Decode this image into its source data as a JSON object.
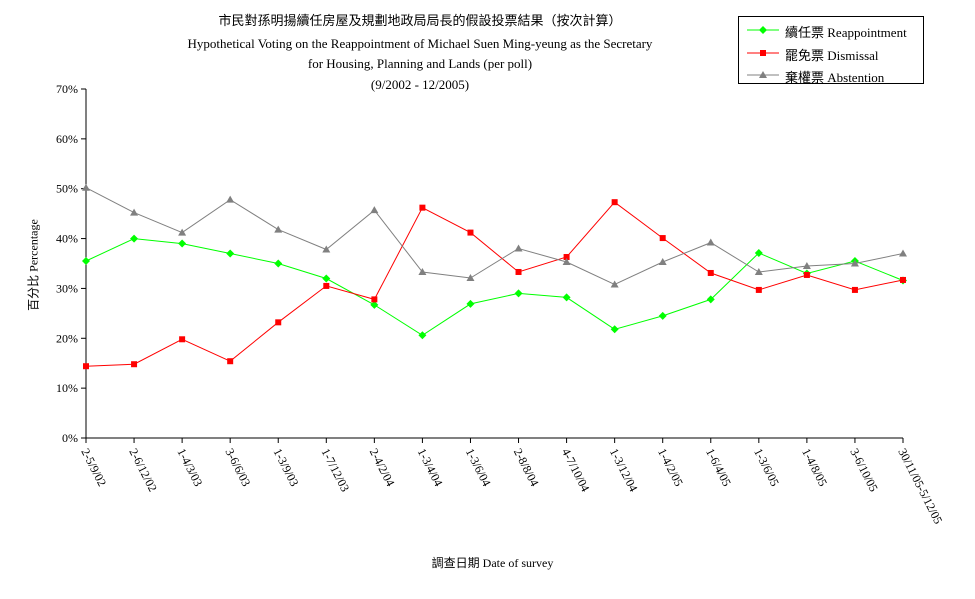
{
  "chart_data": {
    "type": "line",
    "title_lines": [
      "市民對孫明揚續任房屋及規劃地政局局長的假設投票結果（按次計算）",
      "Hypothetical Voting on the Reappointment of Michael Suen Ming-yeung as the Secretary",
      "for Housing, Planning and Lands (per poll)",
      "(9/2002 - 12/2005)"
    ],
    "xlabel": "調查日期 Date of survey",
    "ylabel": "百分比 Percentage",
    "ylim": [
      0,
      70
    ],
    "y_ticks": [
      "0%",
      "10%",
      "20%",
      "30%",
      "40%",
      "50%",
      "60%",
      "70%"
    ],
    "y_tick_values": [
      0,
      10,
      20,
      30,
      40,
      50,
      60,
      70
    ],
    "legend_position": "top-right",
    "grid": false,
    "categories": [
      "2-5/9/02",
      "2-6/12/02",
      "1-4/3/03",
      "3-6/6/03",
      "1-3/9/03",
      "1-7/12/03",
      "2-4/2/04",
      "1-3/4/04",
      "1-3/6/04",
      "2-8/8/04",
      "4-7/10/04",
      "1-3/12/04",
      "1-4/2/05",
      "1-6/4/05",
      "1-3/6/05",
      "1-4/8/05",
      "3-6/10/05",
      "30/11/05-5/12/05"
    ],
    "series": [
      {
        "name": "續任票 Reappointment",
        "color": "#00ff00",
        "marker": "diamond",
        "values": [
          35.5,
          40,
          39,
          37,
          35,
          32,
          26.7,
          20.6,
          26.9,
          29,
          28.2,
          21.8,
          24.5,
          27.8,
          37.1,
          33,
          35.5,
          31.6
        ]
      },
      {
        "name": "罷免票 Dismissal",
        "color": "#ff0000",
        "marker": "square",
        "values": [
          14.4,
          14.8,
          19.8,
          15.4,
          23.2,
          30.5,
          27.8,
          46.2,
          41.2,
          33.3,
          36.3,
          47.3,
          40.1,
          33.1,
          29.7,
          32.7,
          29.7,
          31.7
        ]
      },
      {
        "name": "棄權票 Abstention",
        "color": "#808080",
        "marker": "triangle",
        "values": [
          50.2,
          45.2,
          41.2,
          47.8,
          41.8,
          37.8,
          45.7,
          33.3,
          32.1,
          38,
          35.3,
          30.8,
          35.3,
          39.2,
          33.3,
          34.5,
          35,
          37
        ]
      }
    ]
  }
}
